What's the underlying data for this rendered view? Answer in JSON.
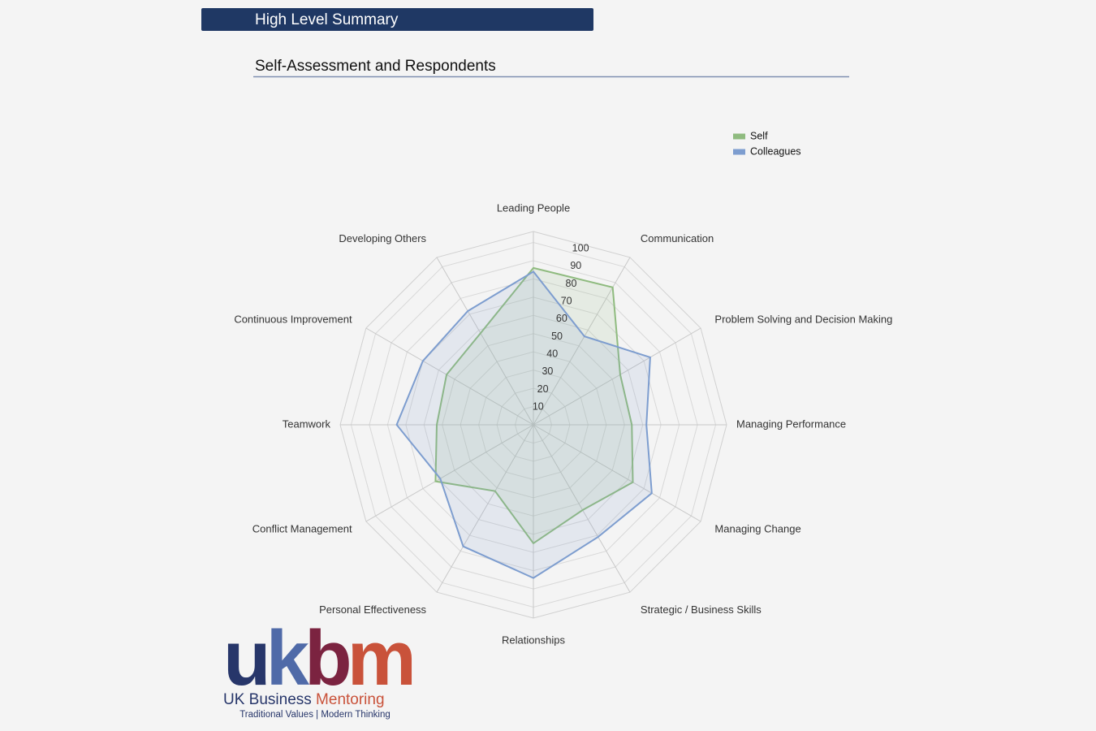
{
  "header": {
    "title": "High Level Summary",
    "subtitle": "Self-Assessment and Respondents"
  },
  "chart_data": {
    "type": "radar",
    "categories": [
      "Leading People",
      "Communication",
      "Problem Solving and Decision Making",
      "Managing Performance",
      "Managing Change",
      "Strategic / Business Skills",
      "Relationships",
      "Personal Effectiveness",
      "Conflict Management",
      "Teamwork",
      "Continuous Improvement",
      "Developing Others"
    ],
    "series": [
      {
        "name": "Self",
        "color": "#8fbb7f",
        "values": [
          86,
          87,
          55,
          54,
          63,
          54,
          65,
          42,
          62,
          53,
          55,
          58
        ]
      },
      {
        "name": "Colleagues",
        "color": "#7d9dcf",
        "values": [
          84,
          56,
          74,
          62,
          75,
          71,
          84,
          77,
          59,
          75,
          70,
          72
        ]
      }
    ],
    "ylim": [
      0,
      106
    ],
    "yticks": [
      10,
      20,
      30,
      40,
      50,
      60,
      70,
      80,
      90,
      100
    ],
    "grid": true,
    "legend": "top-right"
  },
  "logo": {
    "mark": [
      {
        "text": "u",
        "color": "#27366a"
      },
      {
        "text": "k",
        "color": "#4f6aa8"
      },
      {
        "text": "b",
        "color": "#7b2340"
      },
      {
        "text": "m",
        "color": "#c9523a"
      }
    ],
    "name": [
      {
        "text": "UK Business ",
        "color": "#27366a"
      },
      {
        "text": "Mentoring",
        "color": "#c9523a"
      }
    ],
    "tagline": "Traditional Values | Modern Thinking"
  }
}
